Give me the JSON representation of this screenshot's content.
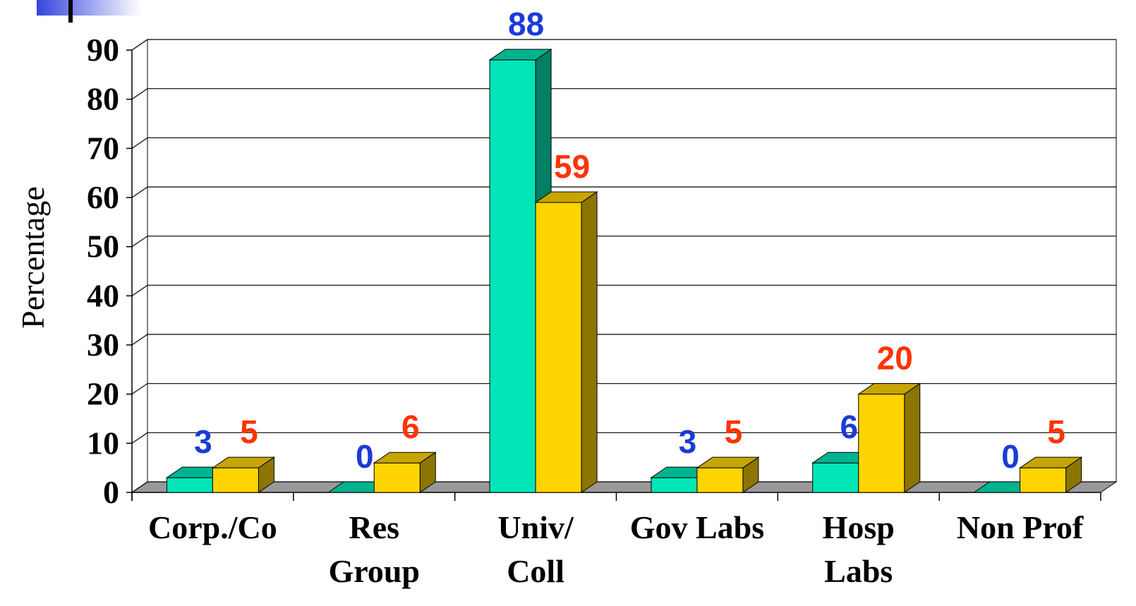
{
  "chart_data": {
    "type": "bar3d",
    "y_label": "Percentage",
    "categories": [
      "Corp./Co",
      "Res\nGroup",
      "Univ/\nColl",
      "Gov Labs",
      "Hosp\nLabs",
      "Non Prof"
    ],
    "series": [
      {
        "color": "#00e6b8",
        "label_color": "#1a3bd8",
        "values": [
          3,
          0,
          88,
          3,
          6,
          0
        ]
      },
      {
        "color": "#ffd400",
        "label_color": "#ff3300",
        "values": [
          5,
          6,
          59,
          5,
          20,
          5
        ]
      }
    ],
    "ylim": [
      0,
      90
    ],
    "yticks": [
      0,
      10,
      20,
      30,
      40,
      50,
      60,
      70,
      80,
      90
    ],
    "grid": true
  }
}
